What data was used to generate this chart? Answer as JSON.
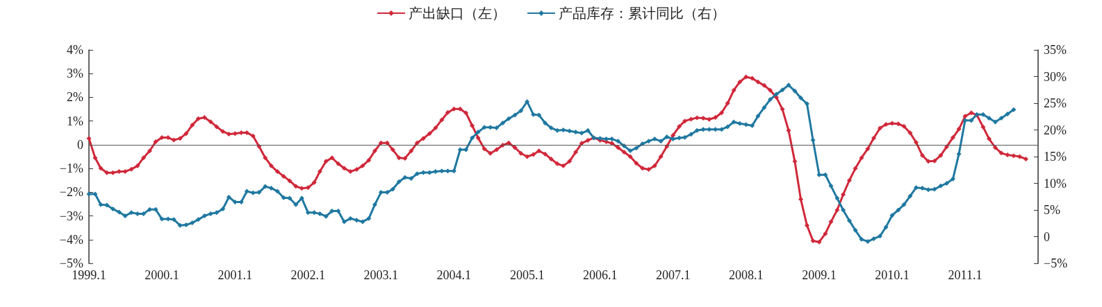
{
  "chart_data": {
    "type": "line",
    "marker": "diamond",
    "line_style": "solid",
    "legend": "top",
    "grid": false,
    "x": [
      "1999-01",
      "1999-02",
      "1999-03",
      "1999-04",
      "1999-05",
      "1999-06",
      "1999-07",
      "1999-08",
      "1999-09",
      "1999-10",
      "1999-11",
      "1999-12",
      "2000-01",
      "2000-02",
      "2000-03",
      "2000-04",
      "2000-05",
      "2000-06",
      "2000-07",
      "2000-08",
      "2000-09",
      "2000-10",
      "2000-11",
      "2000-12",
      "2001-01",
      "2001-02",
      "2001-03",
      "2001-04",
      "2001-05",
      "2001-06",
      "2001-07",
      "2001-08",
      "2001-09",
      "2001-10",
      "2001-11",
      "2001-12",
      "2002-01",
      "2002-02",
      "2002-03",
      "2002-04",
      "2002-05",
      "2002-06",
      "2002-07",
      "2002-08",
      "2002-09",
      "2002-10",
      "2002-11",
      "2002-12",
      "2003-01",
      "2003-02",
      "2003-03",
      "2003-04",
      "2003-05",
      "2003-06",
      "2003-07",
      "2003-08",
      "2003-09",
      "2003-10",
      "2003-11",
      "2003-12",
      "2004-01",
      "2004-02",
      "2004-03",
      "2004-04",
      "2004-05",
      "2004-06",
      "2004-07",
      "2004-08",
      "2004-09",
      "2004-10",
      "2004-11",
      "2004-12",
      "2005-01",
      "2005-02",
      "2005-03",
      "2005-04",
      "2005-05",
      "2005-06",
      "2005-07",
      "2005-08",
      "2005-09",
      "2005-10",
      "2005-11",
      "2005-12",
      "2006-01",
      "2006-02",
      "2006-03",
      "2006-04",
      "2006-05",
      "2006-06",
      "2006-07",
      "2006-08",
      "2006-09",
      "2006-10",
      "2006-11",
      "2006-12",
      "2007-01",
      "2007-02",
      "2007-03",
      "2007-04",
      "2007-05",
      "2007-06",
      "2007-07",
      "2007-08",
      "2007-09",
      "2007-10",
      "2007-11",
      "2007-12",
      "2008-01",
      "2008-02",
      "2008-03",
      "2008-04",
      "2008-05",
      "2008-06",
      "2008-07",
      "2008-08",
      "2008-09",
      "2008-10",
      "2008-11",
      "2008-12",
      "2009-01",
      "2009-02",
      "2009-03",
      "2009-04",
      "2009-05",
      "2009-06",
      "2009-07",
      "2009-08",
      "2009-09",
      "2009-10",
      "2009-11",
      "2009-12",
      "2010-01",
      "2010-02",
      "2010-03",
      "2010-04",
      "2010-05",
      "2010-06",
      "2010-07",
      "2010-08",
      "2010-09",
      "2010-10",
      "2010-11",
      "2010-12",
      "2011-01",
      "2011-02",
      "2011-03",
      "2011-04",
      "2011-05",
      "2011-06",
      "2011-07",
      "2011-08",
      "2011-09",
      "2011-10",
      "2011-11"
    ],
    "series": [
      {
        "name": "产出缺口（左）",
        "color": "#d0283a",
        "values": [
          0.27,
          -0.55,
          -0.99,
          -1.18,
          -1.18,
          -1.13,
          -1.13,
          -1.03,
          -0.89,
          -0.55,
          -0.26,
          0.13,
          0.3,
          0.3,
          0.2,
          0.27,
          0.47,
          0.83,
          1.1,
          1.15,
          0.97,
          0.76,
          0.56,
          0.45,
          0.47,
          0.51,
          0.51,
          0.37,
          -0.07,
          -0.55,
          -0.89,
          -1.13,
          -1.33,
          -1.52,
          -1.75,
          -1.84,
          -1.81,
          -1.59,
          -1.13,
          -0.7,
          -0.55,
          -0.8,
          -0.99,
          -1.13,
          -1.04,
          -0.89,
          -0.65,
          -0.26,
          0.08,
          0.08,
          -0.21,
          -0.55,
          -0.57,
          -0.26,
          0.08,
          0.27,
          0.47,
          0.71,
          1.05,
          1.36,
          1.51,
          1.51,
          1.34,
          0.81,
          0.29,
          -0.17,
          -0.36,
          -0.21,
          -0.02,
          0.08,
          -0.12,
          -0.36,
          -0.5,
          -0.41,
          -0.26,
          -0.39,
          -0.6,
          -0.8,
          -0.89,
          -0.7,
          -0.31,
          0.06,
          0.19,
          0.29,
          0.19,
          0.13,
          0.06,
          -0.12,
          -0.31,
          -0.5,
          -0.78,
          -0.99,
          -1.04,
          -0.89,
          -0.5,
          -0.07,
          0.4,
          0.77,
          1.0,
          1.08,
          1.14,
          1.12,
          1.07,
          1.15,
          1.35,
          1.75,
          2.3,
          2.65,
          2.86,
          2.8,
          2.65,
          2.5,
          2.3,
          2.0,
          1.5,
          0.6,
          -0.7,
          -2.3,
          -3.4,
          -4.05,
          -4.1,
          -3.75,
          -3.25,
          -2.75,
          -2.1,
          -1.5,
          -1.0,
          -0.55,
          -0.17,
          0.28,
          0.7,
          0.86,
          0.9,
          0.88,
          0.78,
          0.5,
          0.1,
          -0.45,
          -0.7,
          -0.68,
          -0.45,
          -0.08,
          0.3,
          0.66,
          1.2,
          1.35,
          1.25,
          0.75,
          0.25,
          -0.12,
          -0.35,
          -0.43,
          -0.46,
          -0.5,
          -0.6
        ]
      },
      {
        "name": "产品库存：累计同比（右）",
        "color": "#1f78a0",
        "axis": "y2",
        "values": [
          8,
          8,
          6,
          5.9,
          5.2,
          4.6,
          3.9,
          4.5,
          4.3,
          4.3,
          5.1,
          5.1,
          3.3,
          3.3,
          3.2,
          2.1,
          2.2,
          2.6,
          3.2,
          3.9,
          4.3,
          4.5,
          5.2,
          7.4,
          6.5,
          6.5,
          8.5,
          8.2,
          8.3,
          9.4,
          9.1,
          8.5,
          7.3,
          7.2,
          6,
          7.2,
          4.5,
          4.5,
          4.3,
          3.8,
          4.8,
          4.8,
          2.8,
          3.4,
          3.1,
          2.8,
          3.4,
          6,
          8.3,
          8.3,
          8.9,
          10.3,
          11.1,
          10.9,
          11.8,
          12,
          12,
          12.2,
          12.3,
          12.3,
          12.3,
          16.3,
          16.3,
          18.5,
          19.6,
          20.5,
          20.5,
          20.4,
          21.3,
          22.1,
          22.8,
          23.6,
          25.3,
          22.9,
          22.8,
          21.3,
          20.4,
          19.9,
          20,
          19.8,
          19.6,
          19.4,
          19.9,
          18.5,
          18.4,
          18.3,
          18.3,
          17.9,
          17,
          16.1,
          16.6,
          17.4,
          17.9,
          18.3,
          17.9,
          18.7,
          18.3,
          18.5,
          18.6,
          19.2,
          19.9,
          20.1,
          20.1,
          20.1,
          20.1,
          20.6,
          21.5,
          21.2,
          21,
          20.8,
          22.6,
          24.2,
          25.7,
          26.7,
          27.5,
          28.4,
          27.3,
          26,
          24.9,
          18.1,
          11.6,
          11.6,
          9.5,
          7.2,
          5,
          3,
          1.2,
          -0.5,
          -0.9,
          -0.4,
          0.1,
          1.8,
          4,
          5,
          6,
          7.6,
          9.2,
          9.1,
          8.8,
          8.9,
          9.5,
          10,
          10.8,
          15.5,
          21.8,
          21.8,
          22.9,
          22.9,
          22.2,
          21.5,
          22.2,
          23,
          23.8,
          null,
          null
        ]
      }
    ],
    "xlim": [
      "1999-01",
      "2012-01"
    ],
    "xticks": [
      {
        "value": "1999-01",
        "label": "1999.1"
      },
      {
        "value": "2000-01",
        "label": "2000.1"
      },
      {
        "value": "2001-01",
        "label": "2001.1"
      },
      {
        "value": "2002-01",
        "label": "2002.1"
      },
      {
        "value": "2003-01",
        "label": "2003.1"
      },
      {
        "value": "2004-01",
        "label": "2004.1"
      },
      {
        "value": "2005-01",
        "label": "2005.1"
      },
      {
        "value": "2006-01",
        "label": "2006.1"
      },
      {
        "value": "2007-01",
        "label": "2007.1"
      },
      {
        "value": "2008-01",
        "label": "2008.1"
      },
      {
        "value": "2009-01",
        "label": "2009.1"
      },
      {
        "value": "2010-01",
        "label": "2010.1"
      },
      {
        "value": "2011-01",
        "label": "2011.1"
      }
    ],
    "ylim": [
      -5,
      4
    ],
    "yticks": [
      {
        "value": -5,
        "label": "−5%"
      },
      {
        "value": -4,
        "label": "−4%"
      },
      {
        "value": -3,
        "label": "−3%"
      },
      {
        "value": -2,
        "label": "−2%"
      },
      {
        "value": -1,
        "label": "−1%"
      },
      0,
      {
        "value": 1,
        "label": "1%"
      },
      {
        "value": 2,
        "label": "2%"
      },
      {
        "value": 3,
        "label": "3%"
      },
      {
        "value": 4,
        "label": "4%"
      }
    ],
    "y2lim": [
      -5,
      35
    ],
    "y2ticks": [
      {
        "value": -5,
        "label": "−5%"
      },
      0,
      {
        "value": 5,
        "label": "5%"
      },
      {
        "value": 10,
        "label": "10%"
      },
      {
        "value": 15,
        "label": "15%"
      },
      {
        "value": 20,
        "label": "20%"
      },
      {
        "value": 25,
        "label": "25%"
      },
      {
        "value": 30,
        "label": "30%"
      },
      {
        "value": 35,
        "label": "35%"
      }
    ],
    "ref_lines": [
      {
        "axis": "y",
        "value": 0,
        "color": "#555555"
      }
    ]
  }
}
